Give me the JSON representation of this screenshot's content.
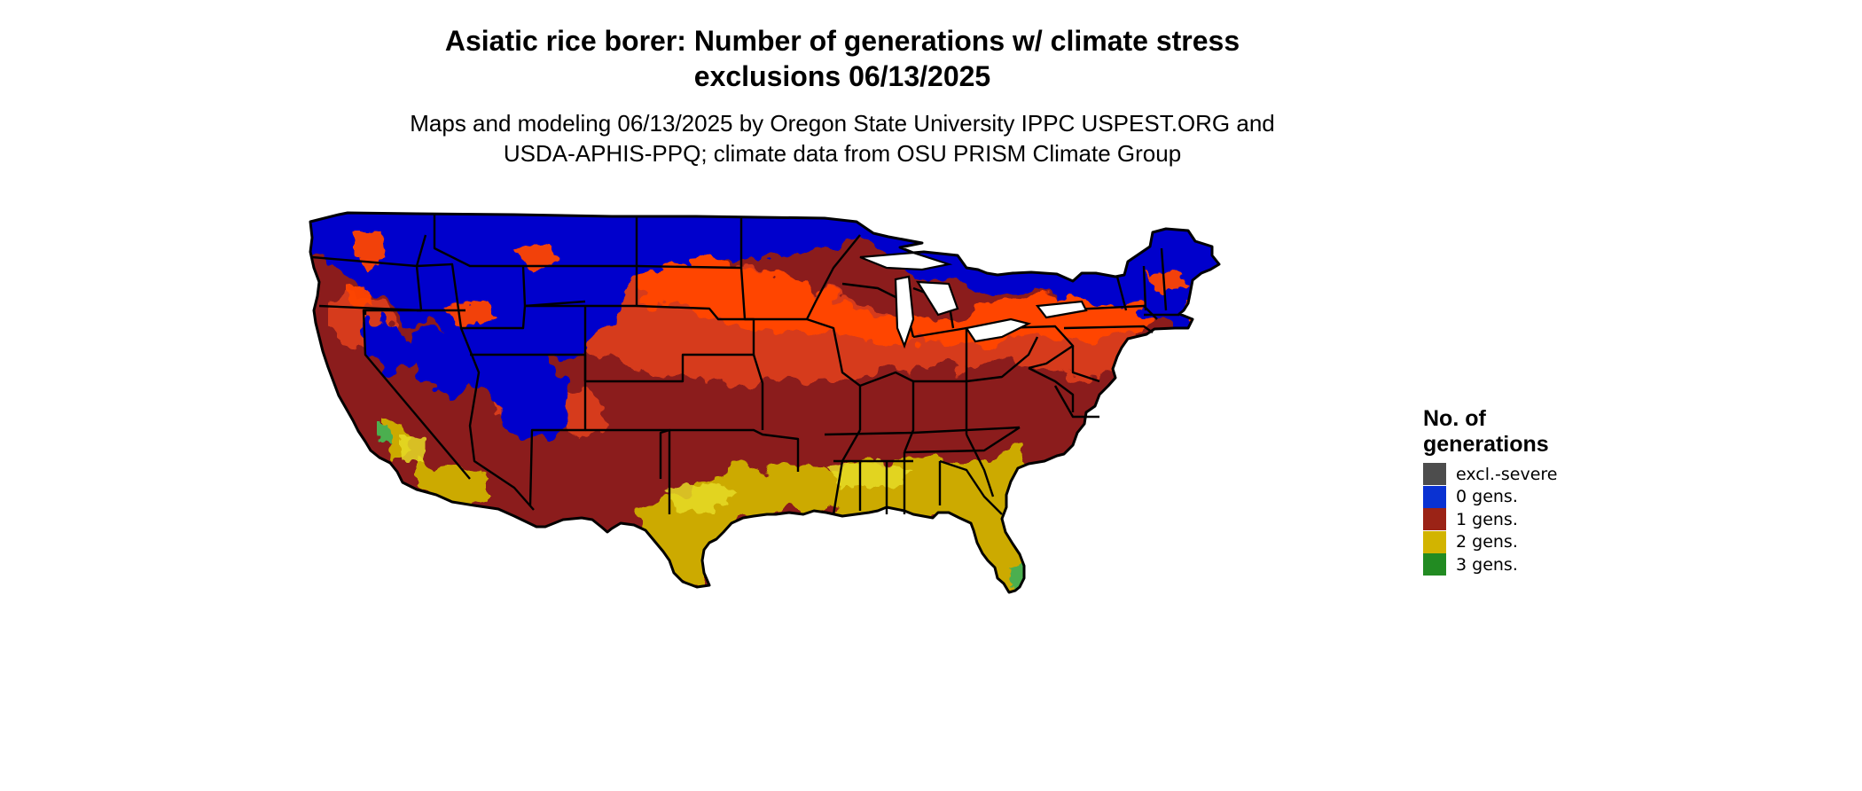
{
  "title": {
    "line1": "Asiatic rice borer: Number of generations w/ climate stress",
    "line2": "exclusions 06/13/2025"
  },
  "subtitle": {
    "line1": "Maps and modeling 06/13/2025 by Oregon State University IPPC USPEST.ORG and",
    "line2": "USDA-APHIS-PPQ; climate data from OSU PRISM Climate Group"
  },
  "legend": {
    "title_line1": "No. of",
    "title_line2": "generations",
    "placement": "right",
    "items": [
      {
        "label": "excl.-severe",
        "color": "#4d4d4d"
      },
      {
        "label": "0 gens.",
        "color": "#0a32d2"
      },
      {
        "label": "1 gens.",
        "color": "#9b2316"
      },
      {
        "label": "2 gens.",
        "color": "#d2b400"
      },
      {
        "label": "3 gens.",
        "color": "#228b22"
      }
    ]
  },
  "map": {
    "region": "Contiguous United States",
    "colors": {
      "zero_gens": "#0000cc",
      "one_gen_low": "#ff4500",
      "one_gen_mid": "#d63a1a",
      "one_gen_high": "#8b1c1c",
      "two_gens": "#ccaa00",
      "two_gens_light": "#e6dc28",
      "three_gens": "#4caf50",
      "borders": "#000000"
    }
  }
}
